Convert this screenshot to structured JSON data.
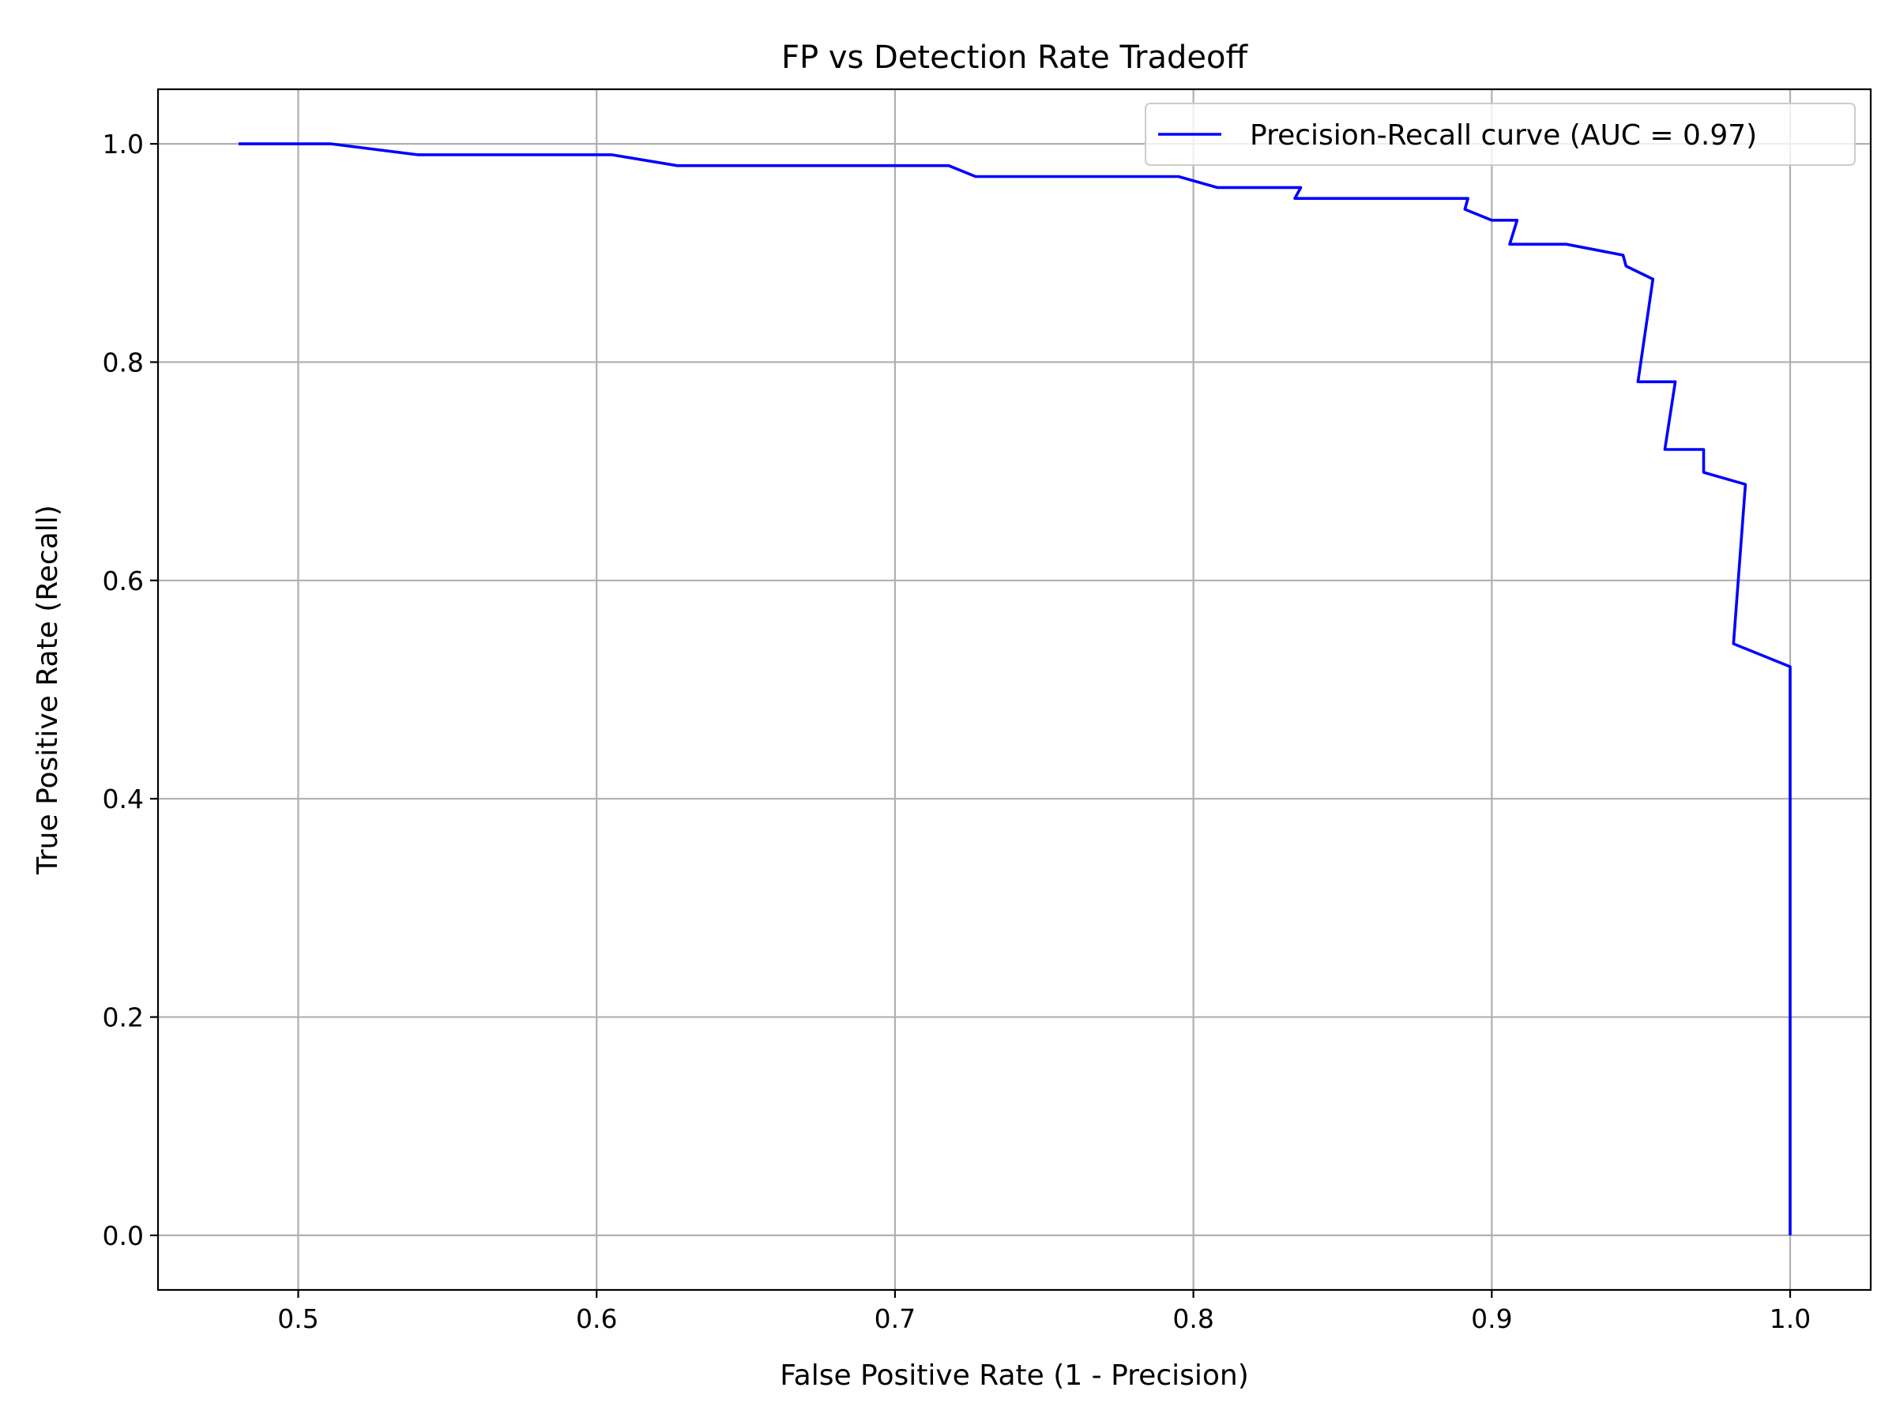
{
  "chart_data": {
    "type": "line",
    "title": "FP vs Detection Rate Tradeoff",
    "xlabel": "False Positive Rate (1 - Precision)",
    "ylabel": "True Positive Rate (Recall)",
    "xlim": [
      0.453,
      1.027
    ],
    "ylim": [
      -0.05,
      1.05
    ],
    "x_ticks": [
      0.5,
      0.6,
      0.7,
      0.8,
      0.9,
      1.0
    ],
    "x_tick_labels": [
      "0.5",
      "0.6",
      "0.7",
      "0.8",
      "0.9",
      "1.0"
    ],
    "y_ticks": [
      0.0,
      0.2,
      0.4,
      0.6,
      0.8,
      1.0
    ],
    "y_tick_labels": [
      "0.0",
      "0.2",
      "0.4",
      "0.6",
      "0.8",
      "1.0"
    ],
    "grid": true,
    "legend_position": "upper right",
    "series": [
      {
        "name": "Precision-Recall curve (AUC = 0.97)",
        "color": "#0000ff",
        "x": [
          0.48,
          0.511,
          0.54,
          0.605,
          0.627,
          0.718,
          0.727,
          0.795,
          0.808,
          0.836,
          0.834,
          0.892,
          0.891,
          0.9,
          0.9085,
          0.906,
          0.925,
          0.944,
          0.945,
          0.954,
          0.949,
          0.9615,
          0.958,
          0.971,
          0.971,
          0.985,
          0.981,
          1.0,
          1.0
        ],
        "y": [
          1.0,
          1.0,
          0.99,
          0.99,
          0.98,
          0.98,
          0.97,
          0.97,
          0.96,
          0.96,
          0.95,
          0.95,
          0.94,
          0.93,
          0.93,
          0.908,
          0.908,
          0.898,
          0.888,
          0.876,
          0.782,
          0.782,
          0.72,
          0.72,
          0.699,
          0.688,
          0.542,
          0.521,
          0.0
        ]
      }
    ]
  }
}
